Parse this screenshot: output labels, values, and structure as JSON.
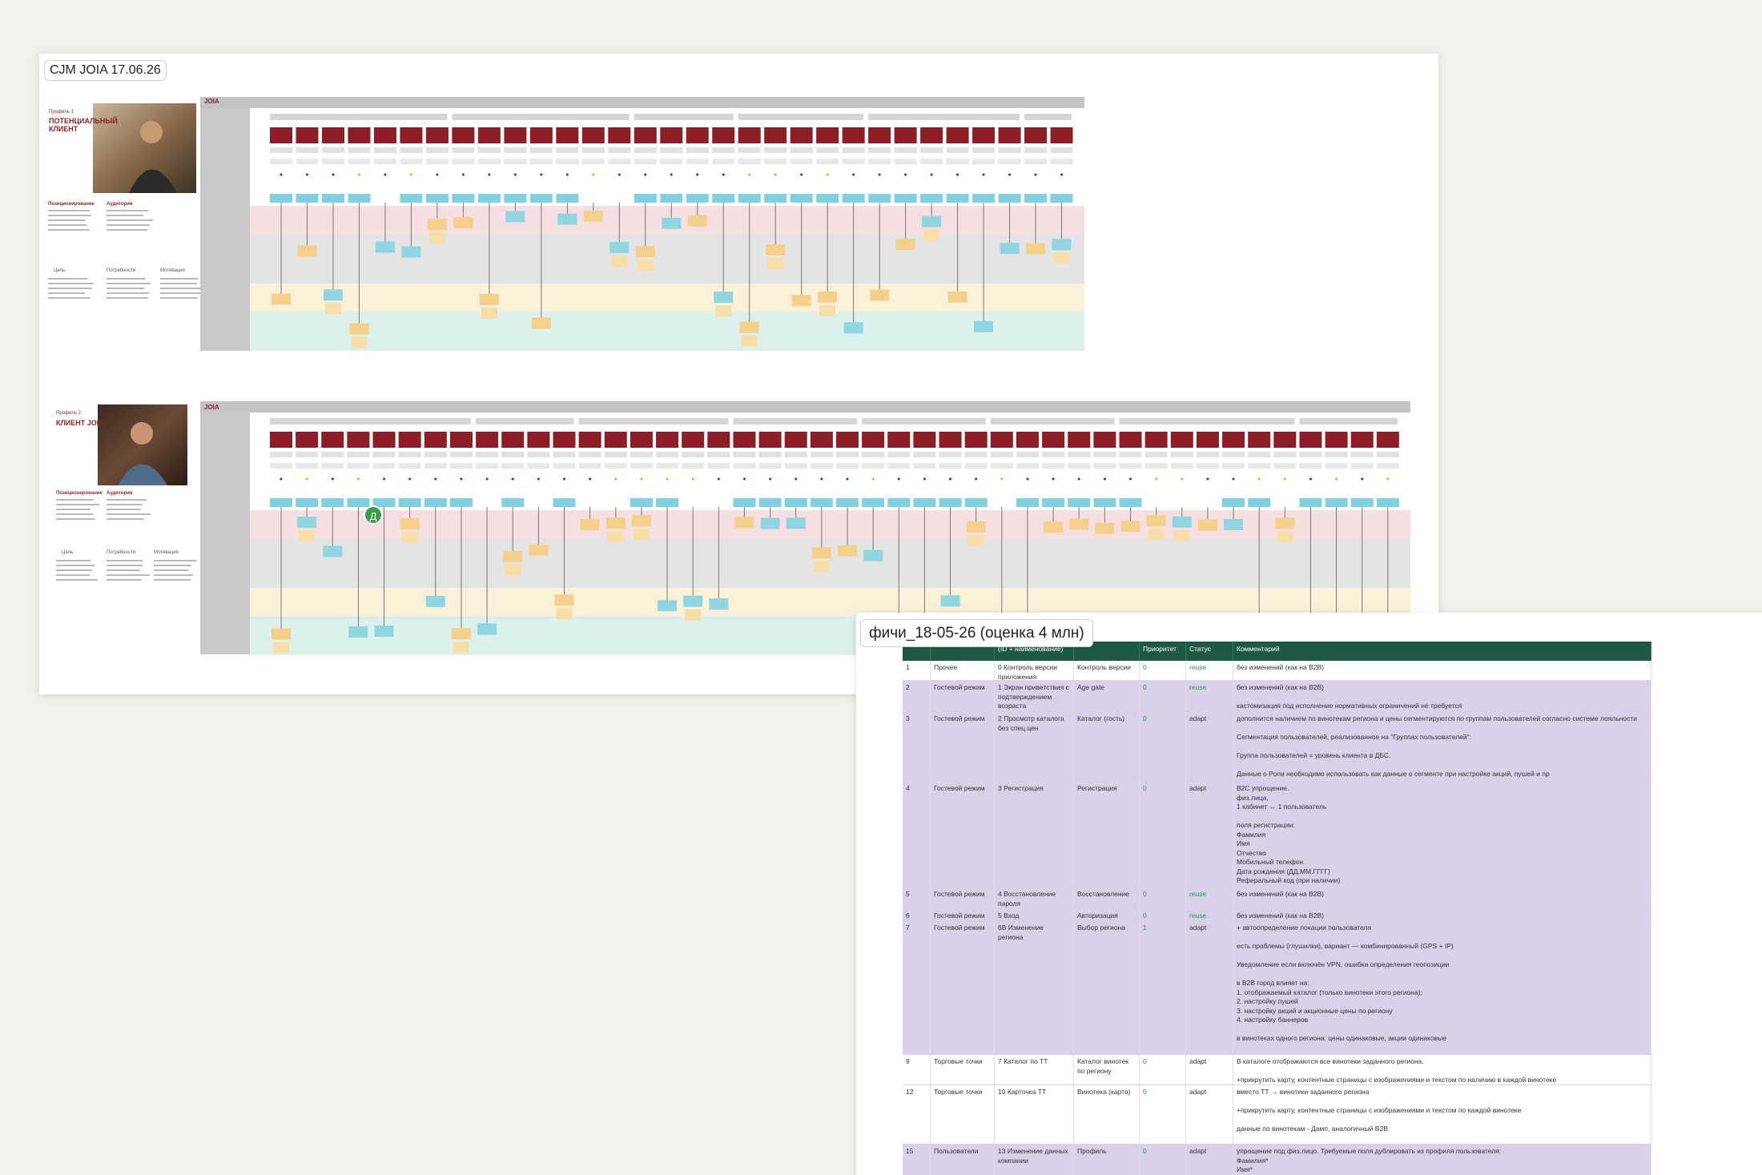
{
  "board": {
    "title": "CJM JOIA 17.06.26",
    "logo": "JOIA",
    "personas": [
      {
        "tag": "Профиль 1",
        "name": "ПОТЕНЦИАЛЬНЫЙ КЛИЕНТ",
        "sections": [
          "Позиционирование",
          "Аудитория"
        ],
        "icons": [
          "Цель",
          "Потребности",
          "Мотивация"
        ]
      },
      {
        "tag": "Профиль 2",
        "name": "КЛИЕНТ JOIA",
        "sections": [
          "Позиционирование",
          "Аудитория"
        ],
        "icons": [
          "Цель",
          "Потребности",
          "Мотивация"
        ]
      }
    ],
    "avatar": "Д"
  },
  "sheet": {
    "title": "фичи_18-05-26 (оценка 4 млн)",
    "header": [
      "(ID + наименование)",
      "Приоритет",
      "Статус",
      "Комментарий"
    ],
    "rows": [
      {
        "num": "1",
        "section": "Прочее",
        "feature": "0 Контроль версии приложения",
        "screen": "Контроль версии",
        "priority": "0",
        "status": "reuse",
        "comment": [
          [
            "без изменений (как на B2B)"
          ]
        ]
      },
      {
        "num": "2",
        "section": "Гостевой режим",
        "feature": "1 Экран приветствия с подтверждением возраста",
        "screen": "Age gate",
        "priority": "0",
        "status": "reuse",
        "comment": [
          [
            "без изменений (как на B2B)"
          ],
          [
            "кастомизация под исполнение нормативных ограничений не требуется"
          ]
        ]
      },
      {
        "num": "3",
        "section": "Гостевой режим",
        "feature": "2 Просмотр каталога без спец.цен",
        "screen": "Каталог (гость)",
        "priority": "0",
        "status": "adapt",
        "comment": [
          [
            "дополнится наличием по винотекам региона и цены сегментируются по группам пользователей согласно системе лояльности"
          ],
          [
            "Сегментация пользователей, реализованное на \"Группах пользователей\":"
          ],
          [
            "Группа пользователей = уровень клиента в ДБС."
          ],
          [
            "Данные о Роли необходимо использовать как данные о сегменте при настройке акций, пушей и пр"
          ]
        ]
      },
      {
        "num": "4",
        "section": "Гостевой режим",
        "feature": "3 Регистрация",
        "screen": "Регистрация",
        "priority": "0",
        "status": "adapt",
        "comment": [
          [
            "B2C упрощение.",
            "физ.лица,",
            "1 кабинет ↔ 1 пользователь"
          ],
          [
            "поля регистрации:",
            "Фамилия",
            "Имя",
            "Отчество",
            "Мобильный телефон",
            "Дата рождения (ДД.ММ.ГГГГ)",
            "Реферальный код (при наличии)"
          ]
        ]
      },
      {
        "num": "5",
        "section": "Гостевой режим",
        "feature": "4 Восстановление пароля",
        "screen": "Восстановление",
        "priority": "0",
        "status": "reuse",
        "comment": [
          [
            "без изменений (как на B2B)"
          ]
        ]
      },
      {
        "num": "6",
        "section": "Гостевой режим",
        "feature": "5 Вход",
        "screen": "Авторизация",
        "priority": "0",
        "status": "reuse",
        "comment": [
          [
            "без изменений (как на B2B)"
          ]
        ]
      },
      {
        "num": "7",
        "section": "Гостевой режим",
        "feature": "6В Изменение региона",
        "screen": "Выбор региона",
        "priority": "1",
        "status": "adapt",
        "comment": [
          [
            "+ автоопределение локации пользователя"
          ],
          [
            "есть проблемы (глушилки), вариант — комбинированный (GPS + IP)"
          ],
          [
            "Уведомление если включён VPN, ошибка определения геопозиции"
          ],
          [
            "в B2B город влияет на:",
            "1. отображаемый каталог (только винотеки этого региона);",
            "2. настройку пушей",
            "3. настройку акций и акционные цены по региону",
            "4. настройку баннеров"
          ],
          [
            "в винотеках одного региона: цены одинаковые, акции одинаковые"
          ]
        ]
      },
      {
        "num": "9",
        "section": "Торговые точки",
        "feature": "7 Каталог по ТТ",
        "screen": "Каталог винотек по региону",
        "priority": "0",
        "status": "adapt",
        "comment": [
          [
            "В каталоге отображаются все винотеки заданного региона."
          ],
          [
            "+прикрутить карту, контентные страницы с изображениями и текстом по наличию в каждой винотеке"
          ]
        ]
      },
      {
        "num": "12",
        "section": "Торговые точки",
        "feature": "10 Карточка ТТ",
        "screen": "Винотека (карта)",
        "priority": "0",
        "status": "adapt",
        "comment": [
          [
            "вместо ТТ → винотеки заданного региона"
          ],
          [
            "+прикрутить карту, контентные страницы с изображениями и текстом по каждой винотеке"
          ],
          [
            "данные по винотекам - Дамп, аналогичный B2B"
          ]
        ]
      },
      {
        "num": "15",
        "section": "Пользователи",
        "feature": "13 Изменение данных компании",
        "screen": "Профиль",
        "priority": "0",
        "status": "adapt",
        "comment": [
          [
            "упрощение под физ.лицо. Требуемые поля дублировать из профиля пользователя:",
            "Фамилия*",
            "Имя*"
          ]
        ]
      }
    ]
  }
}
